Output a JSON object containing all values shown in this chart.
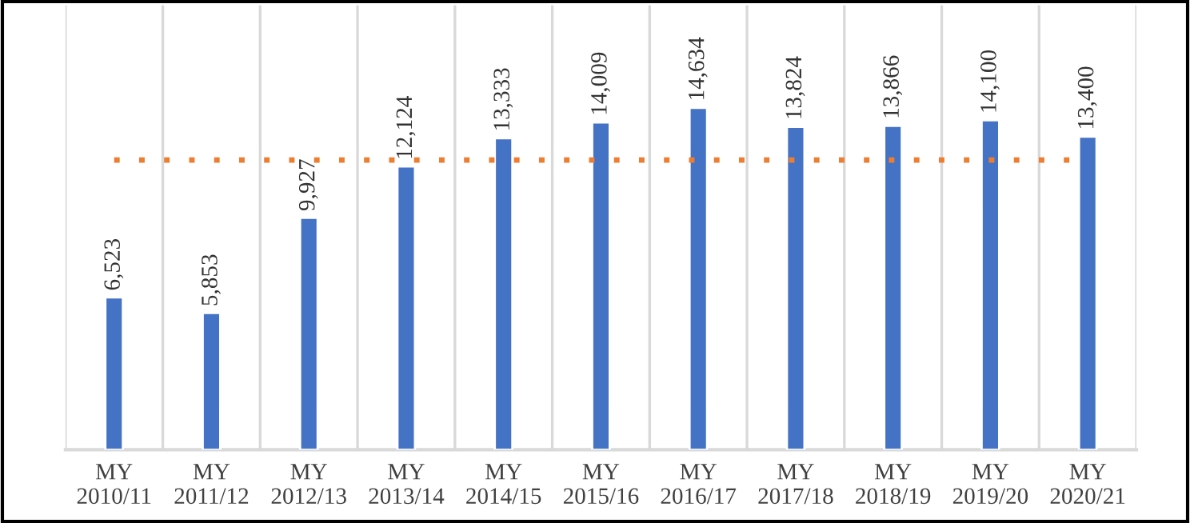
{
  "chart_data": {
    "type": "bar",
    "categories": [
      "MY\n2010/11",
      "MY\n2011/12",
      "MY\n2012/13",
      "MY\n2013/14",
      "MY\n2014/15",
      "MY\n2015/16",
      "MY\n2016/17",
      "MY\n2017/18",
      "MY\n2018/19",
      "MY\n2019/20",
      "MY\n2020/21"
    ],
    "values": [
      6523,
      5853,
      9927,
      12124,
      13333,
      14009,
      14634,
      13824,
      13866,
      14100,
      13400
    ],
    "color": "#4472c4",
    "value_labels": [
      "6,523",
      "5,853",
      "9,927",
      "12,124",
      "13,333",
      "14,009",
      "14,634",
      "13,824",
      "13,866",
      "14,100",
      "13,400"
    ],
    "ref_lines": [
      {
        "axis": "y",
        "value": 12400,
        "color": "#ed7d31",
        "line_style": "dotted"
      }
    ],
    "grid": "x",
    "legend": false
  }
}
